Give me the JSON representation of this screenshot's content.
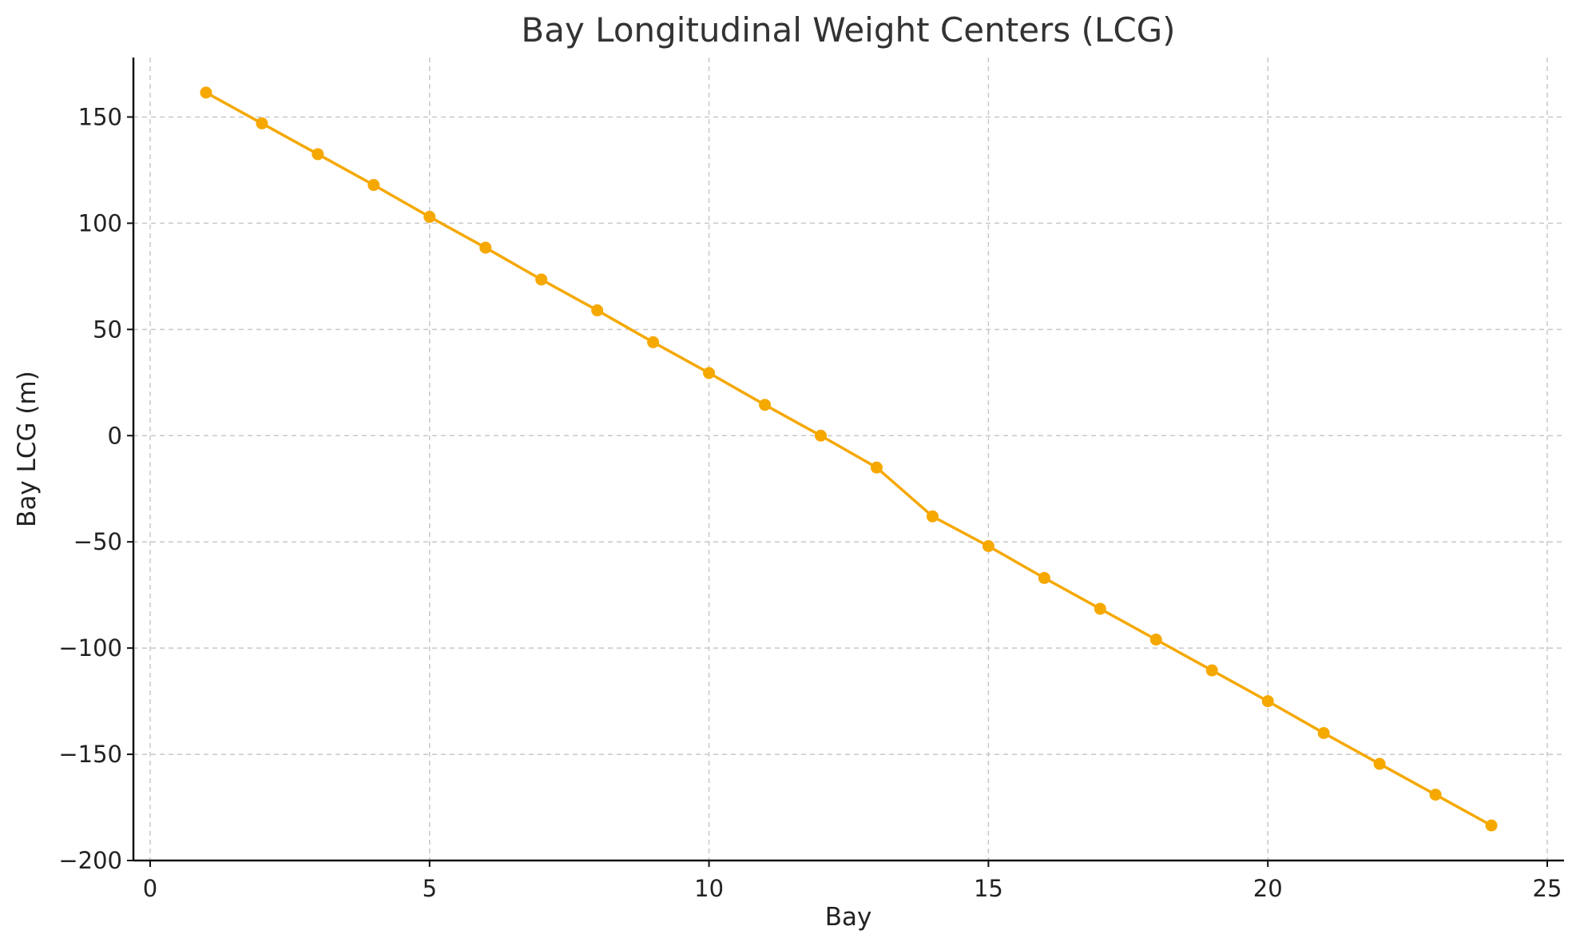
{
  "chart_data": {
    "type": "line",
    "title": "Bay Longitudinal Weight Centers (LCG)",
    "xlabel": "Bay",
    "ylabel": "Bay LCG (m)",
    "xlim": [
      -0.3,
      25.3
    ],
    "ylim": [
      -200,
      178
    ],
    "x_ticks": [
      0,
      5,
      10,
      15,
      20,
      25
    ],
    "y_ticks": [
      -200,
      -150,
      -100,
      -50,
      0,
      50,
      100,
      150
    ],
    "x_tick_labels": [
      "0",
      "5",
      "10",
      "15",
      "20",
      "25"
    ],
    "y_tick_labels": [
      "−200",
      "−150",
      "−100",
      "−50",
      "0",
      "50",
      "100",
      "150"
    ],
    "grid": true,
    "series": [
      {
        "color": "#f5a800",
        "marker": "circle",
        "x": [
          1,
          2,
          3,
          4,
          5,
          6,
          7,
          8,
          9,
          10,
          11,
          12,
          13,
          14,
          15,
          16,
          17,
          18,
          19,
          20,
          21,
          22,
          23,
          24
        ],
        "y": [
          161.5,
          147,
          132.5,
          118,
          103,
          88.5,
          73.5,
          59,
          44,
          29.5,
          14.5,
          0,
          -15,
          -38,
          -52,
          -67,
          -81.5,
          -96,
          -110.5,
          -125,
          -140,
          -154.5,
          -169,
          -183.5
        ]
      }
    ]
  }
}
